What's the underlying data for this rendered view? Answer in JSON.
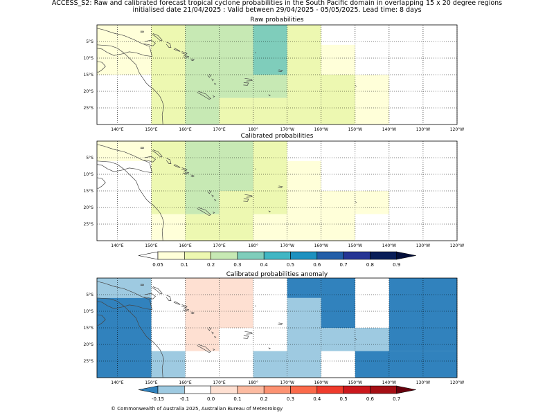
{
  "header": {
    "line1": "ACCESS_S2: Raw and calibrated forecast tropical cyclone probabilities in the South Pacific domain in overlapping 15 x 20 degree regions",
    "line2": "initialised date 21/04/2025 :  Valid between 29/04/2025 - 05/05/2025. Lead time: 8 days"
  },
  "map": {
    "lon_labels": [
      "140°E",
      "150°E",
      "160°E",
      "170°E",
      "180°",
      "170°W",
      "160°W",
      "150°W",
      "140°W",
      "130°W",
      "120°W"
    ],
    "lat_labels": [
      "5°S",
      "10°S",
      "15°S",
      "20°S",
      "25°S"
    ],
    "lon_range": [
      -226,
      -120
    ],
    "lat_range": [
      -30,
      0
    ]
  },
  "panels": [
    {
      "title": "Raw probabilities",
      "cells": [
        {
          "lon": [
            -226,
            -210
          ],
          "lat": [
            -15,
            0
          ],
          "v": 0.07
        },
        {
          "lon": [
            -210,
            -200
          ],
          "lat": [
            -30,
            0
          ],
          "v": 0.15
        },
        {
          "lon": [
            -200,
            -190
          ],
          "lat": [
            -30,
            0
          ],
          "v": 0.25
        },
        {
          "lon": [
            -190,
            -180
          ],
          "lat": [
            -30,
            -22
          ],
          "v": 0.15
        },
        {
          "lon": [
            -190,
            -180
          ],
          "lat": [
            -22,
            0
          ],
          "v": 0.25
        },
        {
          "lon": [
            -180,
            -170
          ],
          "lat": [
            -30,
            -22
          ],
          "v": 0.15
        },
        {
          "lon": [
            -180,
            -170
          ],
          "lat": [
            -22,
            -15
          ],
          "v": 0.25
        },
        {
          "lon": [
            -180,
            -170
          ],
          "lat": [
            -15,
            0
          ],
          "v": 0.3
        },
        {
          "lon": [
            -170,
            -160
          ],
          "lat": [
            -30,
            0
          ],
          "v": 0.15
        },
        {
          "lon": [
            -160,
            -150
          ],
          "lat": [
            -30,
            -15
          ],
          "v": 0.15
        },
        {
          "lon": [
            -160,
            -150
          ],
          "lat": [
            -15,
            -6
          ],
          "v": 0.07
        },
        {
          "lon": [
            -150,
            -140
          ],
          "lat": [
            -30,
            -15
          ],
          "v": 0.07
        }
      ]
    },
    {
      "title": "Calibrated probabilities",
      "cells": [
        {
          "lon": [
            -226,
            -210
          ],
          "lat": [
            -6,
            0
          ],
          "v": 0.07
        },
        {
          "lon": [
            -210,
            -200
          ],
          "lat": [
            -30,
            -22
          ],
          "v": 0.07
        },
        {
          "lon": [
            -210,
            -200
          ],
          "lat": [
            -22,
            0
          ],
          "v": 0.15
        },
        {
          "lon": [
            -200,
            -190
          ],
          "lat": [
            -30,
            -22
          ],
          "v": 0.15
        },
        {
          "lon": [
            -200,
            -190
          ],
          "lat": [
            -22,
            0
          ],
          "v": 0.25
        },
        {
          "lon": [
            -190,
            -180
          ],
          "lat": [
            -30,
            -15
          ],
          "v": 0.15
        },
        {
          "lon": [
            -190,
            -180
          ],
          "lat": [
            -15,
            0
          ],
          "v": 0.25
        },
        {
          "lon": [
            -180,
            -170
          ],
          "lat": [
            -30,
            -22
          ],
          "v": 0.07
        },
        {
          "lon": [
            -180,
            -170
          ],
          "lat": [
            -22,
            0
          ],
          "v": 0.15
        },
        {
          "lon": [
            -170,
            -160
          ],
          "lat": [
            -30,
            -6
          ],
          "v": 0.07
        },
        {
          "lon": [
            -160,
            -150
          ],
          "lat": [
            -30,
            -15
          ],
          "v": 0.07
        },
        {
          "lon": [
            -150,
            -140
          ],
          "lat": [
            -22,
            -15
          ],
          "v": 0.07
        }
      ]
    },
    {
      "title": "Calibrated probabilities anomaly",
      "cells": [
        {
          "lon": [
            -226,
            -210
          ],
          "lat": [
            -6,
            0
          ],
          "v": -0.12
        },
        {
          "lon": [
            -226,
            -210
          ],
          "lat": [
            -30,
            -6
          ],
          "v": -0.2
        },
        {
          "lon": [
            -210,
            -200
          ],
          "lat": [
            -30,
            -22
          ],
          "v": -0.12
        },
        {
          "lon": [
            -200,
            -190
          ],
          "lat": [
            -22,
            0
          ],
          "v": 0.05
        },
        {
          "lon": [
            -190,
            -180
          ],
          "lat": [
            -15,
            0
          ],
          "v": 0.05
        },
        {
          "lon": [
            -180,
            -170
          ],
          "lat": [
            -30,
            -22
          ],
          "v": -0.12
        },
        {
          "lon": [
            -170,
            -160
          ],
          "lat": [
            -30,
            -6
          ],
          "v": -0.12
        },
        {
          "lon": [
            -170,
            -160
          ],
          "lat": [
            -6,
            0
          ],
          "v": -0.2
        },
        {
          "lon": [
            -160,
            -150
          ],
          "lat": [
            -15,
            0
          ],
          "v": -0.2
        },
        {
          "lon": [
            -160,
            -140
          ],
          "lat": [
            -22,
            -15
          ],
          "v": -0.12
        },
        {
          "lon": [
            -150,
            -120
          ],
          "lat": [
            -30,
            -22
          ],
          "v": -0.2
        },
        {
          "lon": [
            -140,
            -120
          ],
          "lat": [
            -22,
            0
          ],
          "v": -0.2
        }
      ]
    }
  ],
  "colorbar_prob": {
    "ticks": [
      "0.05",
      "0.1",
      "0.2",
      "0.3",
      "0.4",
      "0.5",
      "0.6",
      "0.7",
      "0.8",
      "0.9"
    ],
    "colors": [
      "#ffffd9",
      "#edf8b1",
      "#c7e9b4",
      "#7fcdbb",
      "#41b6c4",
      "#1d91c0",
      "#225ea8",
      "#253494",
      "#081d58"
    ],
    "under": "#ffffff",
    "over": "#040f3a"
  },
  "colorbar_anom": {
    "ticks": [
      "-0.15",
      "-0.1",
      "0.0",
      "0.1",
      "0.2",
      "0.3",
      "0.4",
      "0.5",
      "0.6",
      "0.7"
    ],
    "colors": [
      "#9ecae1",
      "#ffffff",
      "#fee0d2",
      "#fcbba1",
      "#fc9272",
      "#fb6a4a",
      "#ef3b2c",
      "#cb181d",
      "#a50f15"
    ],
    "under": "#3182bd",
    "over": "#67000d"
  },
  "footer": "© Commonwealth of Australia 2025, Australian Bureau of Meteorology"
}
